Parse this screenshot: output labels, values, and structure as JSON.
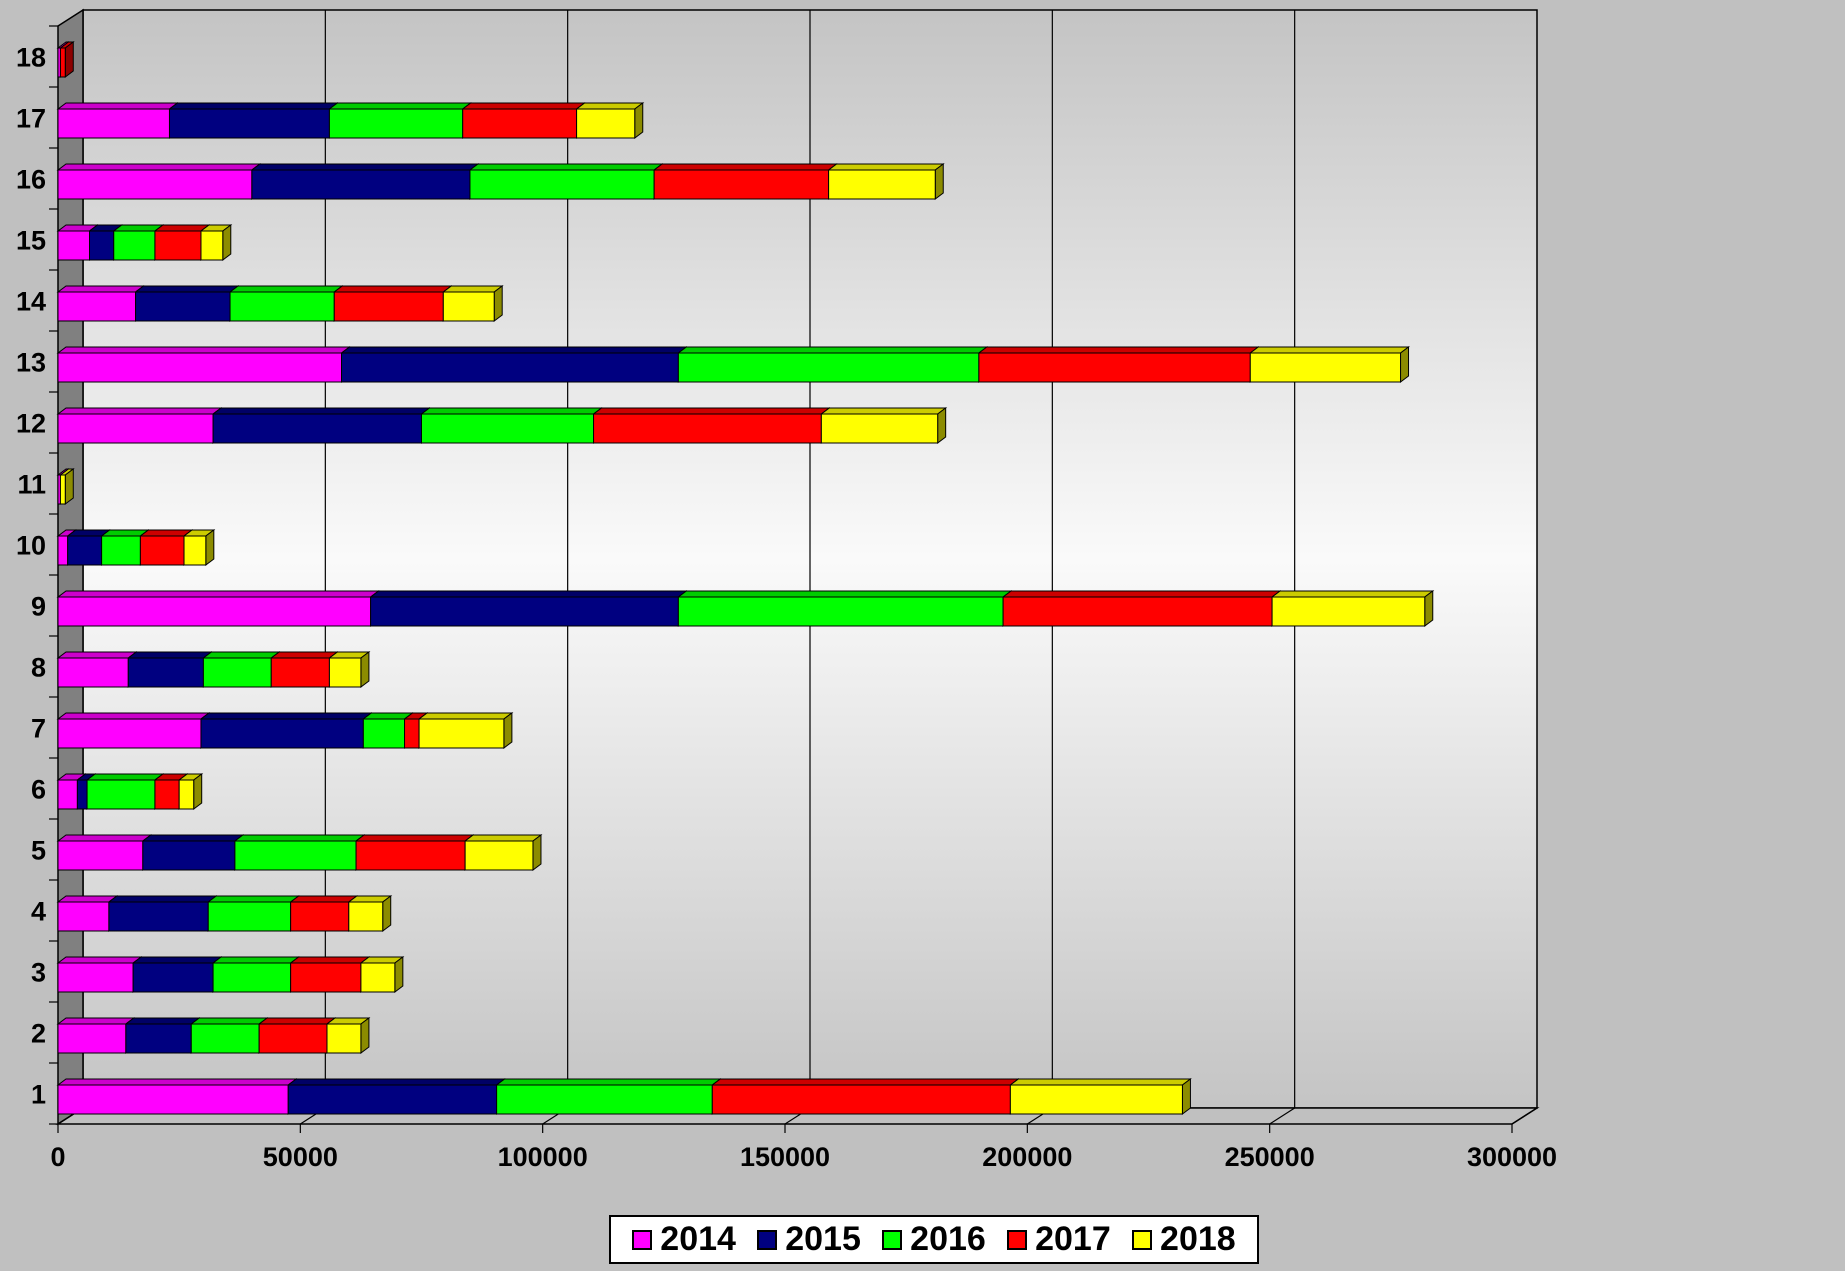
{
  "chart_data": {
    "type": "bar",
    "orientation": "horizontal",
    "stacked": true,
    "three_d": true,
    "title": "",
    "xlabel": "",
    "ylabel": "",
    "xlim": [
      0,
      300000
    ],
    "x_ticks": [
      "0",
      "50000",
      "100000",
      "150000",
      "200000",
      "250000",
      "300000"
    ],
    "grid": "vertical",
    "legend_position": "bottom",
    "categories": [
      "1",
      "2",
      "3",
      "4",
      "5",
      "6",
      "7",
      "8",
      "9",
      "10",
      "11",
      "12",
      "13",
      "14",
      "15",
      "16",
      "17",
      "18"
    ],
    "series": [
      {
        "name": "2014",
        "color": "#ff00ff",
        "values": [
          47500,
          14000,
          15500,
          10500,
          17500,
          4000,
          29500,
          14500,
          64500,
          2000,
          500,
          32000,
          58500,
          16000,
          6500,
          40000,
          23000,
          500
        ]
      },
      {
        "name": "2015",
        "color": "#000080",
        "values": [
          43000,
          13500,
          16500,
          20500,
          19000,
          2000,
          33500,
          15500,
          63500,
          7000,
          0,
          43000,
          69500,
          19500,
          5000,
          45000,
          33000,
          0
        ]
      },
      {
        "name": "2016",
        "color": "#00ff00",
        "values": [
          44500,
          14000,
          16000,
          17000,
          25000,
          14000,
          8500,
          14000,
          67000,
          8000,
          0,
          35500,
          62000,
          21500,
          8500,
          38000,
          27500,
          0
        ]
      },
      {
        "name": "2017",
        "color": "#ff0000",
        "values": [
          61500,
          14000,
          14500,
          12000,
          22500,
          5000,
          3000,
          12000,
          55500,
          9000,
          0,
          47000,
          56000,
          22500,
          9500,
          36000,
          23500,
          1000
        ]
      },
      {
        "name": "2018",
        "color": "#ffff00",
        "values": [
          35500,
          7000,
          7000,
          7000,
          14000,
          3000,
          17500,
          6500,
          31500,
          4500,
          1000,
          24000,
          31000,
          10500,
          4500,
          22000,
          12000,
          0
        ]
      }
    ]
  }
}
